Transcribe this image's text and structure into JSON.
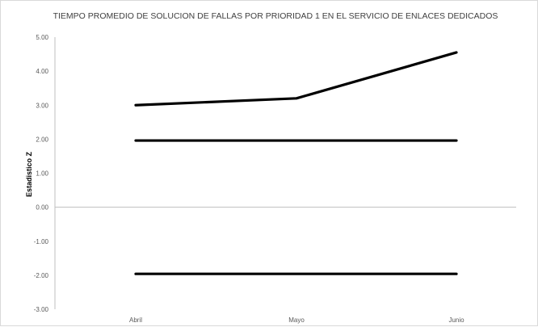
{
  "chart_data": {
    "type": "line",
    "title": "TIEMPO PROMEDIO DE SOLUCION DE FALLAS POR PRIORIDAD 1 EN EL SERVICIO DE ENLACES DEDICADOS",
    "xlabel": "",
    "ylabel": "Estadistico Z",
    "categories": [
      "Abril",
      "Mayo",
      "Junio"
    ],
    "ylim": [
      -3,
      5
    ],
    "yticks": [
      "5.00",
      "4.00",
      "3.00",
      "2.00",
      "1.00",
      "0.00",
      "-1.00",
      "-2.00",
      "-3.00"
    ],
    "grid": false,
    "legend": "none",
    "series": [
      {
        "values": [
          3.0,
          3.2,
          4.55
        ]
      },
      {
        "values": [
          1.96,
          1.96,
          1.96
        ]
      },
      {
        "values": [
          -1.96,
          -1.96,
          -1.96
        ]
      }
    ]
  },
  "colors": {
    "series": "#000000",
    "axis": "#bfbfbf",
    "tick_text": "#595959",
    "title_text": "#404040"
  }
}
